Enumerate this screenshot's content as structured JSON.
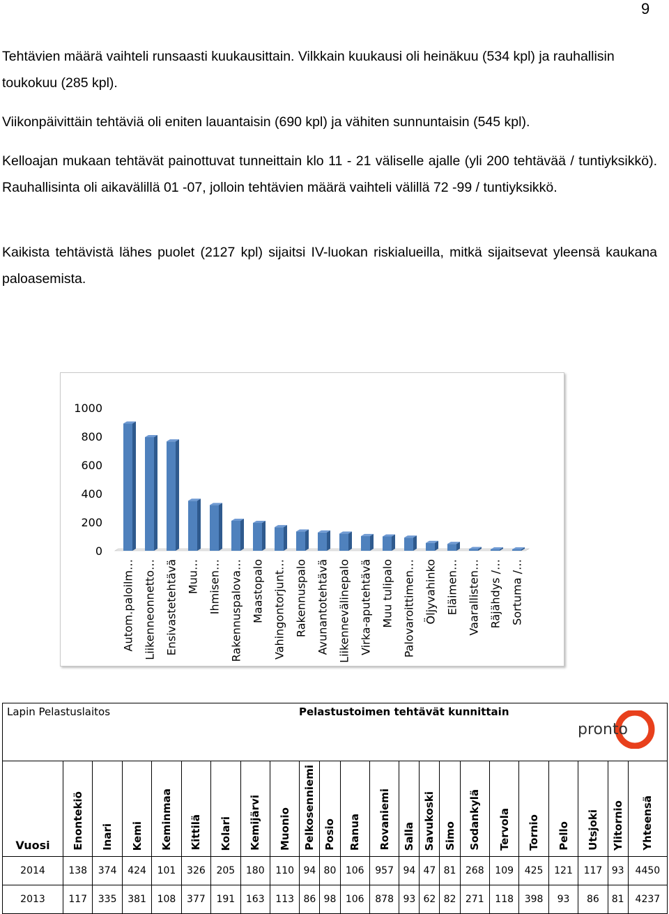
{
  "page_number": "9",
  "paragraphs": [
    "Tehtävien määrä vaihteli runsaasti kuukausittain. Vilkkain kuukausi oli heinäkuu (534 kpl) ja rauhallisin toukokuu (285 kpl).",
    "Viikonpäivittäin tehtäviä oli eniten lauantaisin (690 kpl) ja vähiten sunnuntaisin (545 kpl).",
    "Kelloajan mukaan tehtävät painottuvat tunneittain klo 11 - 21 väliselle ajalle (yli 200 tehtävää / tuntiyksikkö). Rauhallisinta oli aikavälillä 01 -07, jolloin tehtävien määrä vaihteli välillä 72 -99 / tuntiyksikkö.",
    "Kaikista tehtävistä lähes puolet (2127 kpl) sijaitsi IV-luokan riskialueilla, mitkä sijaitsevat yleensä kaukana paloasemista."
  ],
  "chart_data": {
    "type": "bar",
    "categories": [
      "Autom.paloilm…",
      "Liikenneonnetto…",
      "Ensivastetehtävä",
      "Muu…",
      "Ihmisen…",
      "Rakennuspalova…",
      "Maastopalo",
      "Vahingontorjunt…",
      "Rakennuspalo",
      "Avunantotehtävä",
      "Liikennevälinepalo",
      "Virka-aputehtävä",
      "Muu tulipalo",
      "Palovaroittimen…",
      "Öljyvahinko",
      "Eläimen…",
      "Vaarallisten…",
      "Räjähdys /…",
      "Sortuma /…"
    ],
    "values": [
      890,
      795,
      765,
      350,
      320,
      210,
      195,
      165,
      135,
      128,
      120,
      103,
      100,
      92,
      55,
      48,
      12,
      3,
      3
    ],
    "ylim": [
      0,
      1000
    ],
    "yticks": [
      0,
      200,
      400,
      600,
      800,
      1000
    ],
    "bar_color": "#4f81bd",
    "bar_top_color": "#6f9ad3",
    "bar_dark_color": "#2f5a8e"
  },
  "table": {
    "org": "Lapin Pelastuslaitos",
    "title": "Pelastustoimen tehtävät kunnittain",
    "logo_text": "pronto",
    "year_header": "Vuosi",
    "columns": [
      "Enontekiö",
      "Inari",
      "Kemi",
      "Keminmaa",
      "Kittilä",
      "Kolari",
      "Kemijärvi",
      "Muonio",
      "Pelkosenniemi",
      "Posio",
      "Ranua",
      "Rovaniemi",
      "Salla",
      "Savukoski",
      "Simo",
      "Sodankylä",
      "Tervola",
      "Tornio",
      "Pello",
      "Utsjoki",
      "Ylitornio",
      "Yhteensä"
    ],
    "rows": [
      {
        "year": "2014",
        "values": [
          "138",
          "374",
          "424",
          "101",
          "326",
          "205",
          "180",
          "110",
          "94",
          "80",
          "106",
          "957",
          "94",
          "47",
          "81",
          "268",
          "109",
          "425",
          "121",
          "117",
          "93",
          "4450"
        ]
      },
      {
        "year": "2013",
        "values": [
          "117",
          "335",
          "381",
          "108",
          "377",
          "191",
          "163",
          "113",
          "86",
          "98",
          "106",
          "878",
          "93",
          "62",
          "82",
          "271",
          "118",
          "398",
          "93",
          "86",
          "81",
          "4237"
        ]
      }
    ]
  }
}
